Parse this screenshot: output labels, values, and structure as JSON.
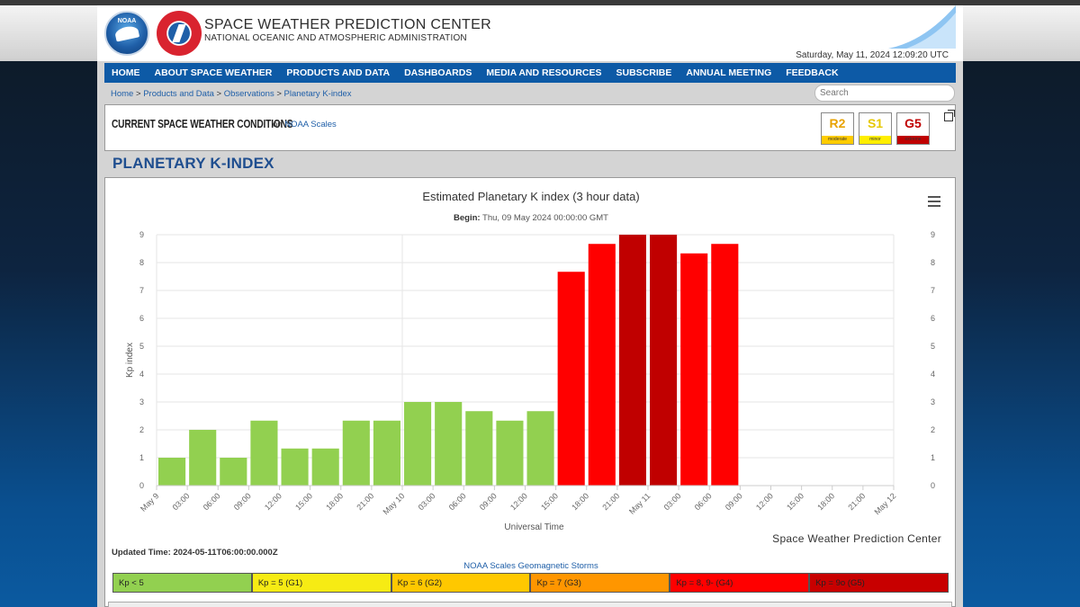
{
  "header": {
    "title": "SPACE WEATHER PREDICTION CENTER",
    "subtitle": "NATIONAL OCEANIC AND ATMOSPHERIC ADMINISTRATION",
    "datetime": "Saturday, May 11, 2024 12:09:20 UTC",
    "noaa_logo_text": "NOAA",
    "nws_logo_text": "NATIONAL WEATHER SERVICE"
  },
  "nav": {
    "items": [
      "HOME",
      "ABOUT SPACE WEATHER",
      "PRODUCTS AND DATA",
      "DASHBOARDS",
      "MEDIA AND RESOURCES",
      "SUBSCRIBE",
      "ANNUAL MEETING",
      "FEEDBACK"
    ]
  },
  "breadcrumb": {
    "items": [
      "Home",
      "Products and Data",
      "Observations",
      "Planetary K-index"
    ],
    "separator": ">"
  },
  "search": {
    "placeholder": "Search"
  },
  "conditions": {
    "title": "CURRENT SPACE WEATHER CONDITIONS",
    "on_text": "on",
    "link_text": "NOAA Scales",
    "badges": [
      {
        "code": "R2",
        "level": "moderate",
        "text_color": "#e8a200",
        "bar_color": "#ffcc00"
      },
      {
        "code": "S1",
        "level": "minor",
        "text_color": "#e6c800",
        "bar_color": "#ffee00"
      },
      {
        "code": "G5",
        "level": "extreme",
        "text_color": "#c00000",
        "bar_color": "#c00000"
      }
    ]
  },
  "page_title": "PLANETARY K-INDEX",
  "chart_data": {
    "type": "bar",
    "title": "Estimated Planetary K index (3 hour data)",
    "subtitle_label": "Begin:",
    "subtitle_value": "Thu, 09 May 2024 00:00:00 GMT",
    "xlabel": "Universal Time",
    "ylabel": "Kp index",
    "ylim": [
      0,
      9
    ],
    "yticks": [
      0,
      1,
      2,
      3,
      4,
      5,
      6,
      7,
      8,
      9
    ],
    "grid": true,
    "x_tick_labels": [
      "May 9",
      "03:00",
      "06:00",
      "09:00",
      "12:00",
      "15:00",
      "18:00",
      "21:00",
      "May 10",
      "03:00",
      "06:00",
      "09:00",
      "12:00",
      "15:00",
      "18:00",
      "21:00",
      "May 11",
      "03:00",
      "06:00",
      "09:00",
      "12:00",
      "15:00",
      "18:00",
      "21:00",
      "May 12"
    ],
    "categories": [
      "May 9 00:00",
      "May 9 03:00",
      "May 9 06:00",
      "May 9 09:00",
      "May 9 12:00",
      "May 9 15:00",
      "May 9 18:00",
      "May 9 21:00",
      "May 10 00:00",
      "May 10 03:00",
      "May 10 06:00",
      "May 10 09:00",
      "May 10 12:00",
      "May 10 15:00",
      "May 10 18:00",
      "May 10 21:00",
      "May 11 00:00",
      "May 11 03:00",
      "May 11 06:00"
    ],
    "values": [
      1.0,
      2.0,
      1.0,
      2.33,
      1.33,
      1.33,
      2.33,
      2.33,
      3.0,
      3.0,
      2.67,
      2.33,
      2.67,
      7.67,
      8.67,
      9.0,
      9.0,
      8.33,
      8.67
    ],
    "colors": [
      "#92d050",
      "#92d050",
      "#92d050",
      "#92d050",
      "#92d050",
      "#92d050",
      "#92d050",
      "#92d050",
      "#92d050",
      "#92d050",
      "#92d050",
      "#92d050",
      "#92d050",
      "#ff0000",
      "#ff0000",
      "#c00000",
      "#c00000",
      "#ff0000",
      "#ff0000"
    ],
    "credit": "Space Weather Prediction Center"
  },
  "updated": "Updated Time: 2024-05-11T06:00:00.000Z",
  "scale": {
    "title": "NOAA Scales Geomagnetic Storms",
    "items": [
      {
        "label": "Kp < 5",
        "color": "#92d050"
      },
      {
        "label": "Kp = 5 (G1)",
        "color": "#f6eb14"
      },
      {
        "label": "Kp = 6 (G2)",
        "color": "#ffc800"
      },
      {
        "label": "Kp = 7 (G3)",
        "color": "#ff9600"
      },
      {
        "label": "Kp = 8, 9- (G4)",
        "color": "#ff0000"
      },
      {
        "label": "Kp = 9o (G5)",
        "color": "#c80000"
      }
    ]
  }
}
